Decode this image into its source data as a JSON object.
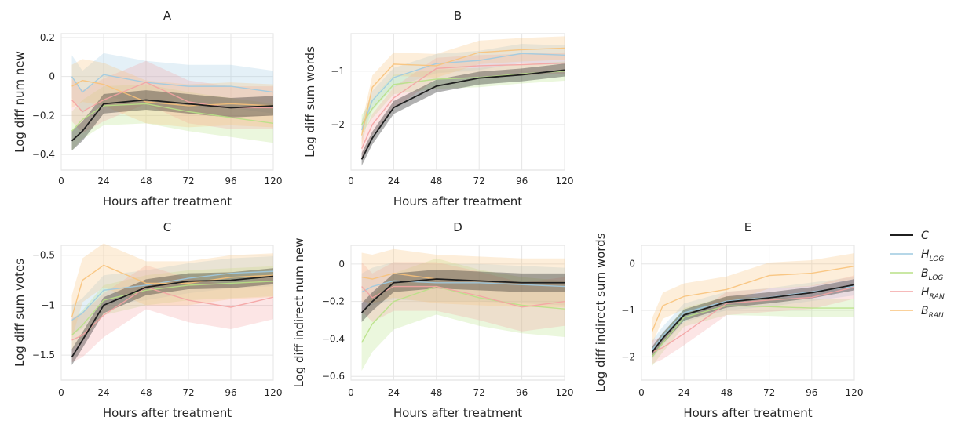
{
  "colors": {
    "C": "#1f1f1f",
    "H_LOG": "#9ecae1",
    "B_LOG": "#b8e186",
    "H_RAN": "#f4a3a3",
    "B_RAN": "#f8c27a"
  },
  "legend": {
    "placement": "right",
    "entries": [
      {
        "key": "C",
        "main": "C",
        "sub": ""
      },
      {
        "key": "H_LOG",
        "main": "H",
        "sub": "LOG"
      },
      {
        "key": "B_LOG",
        "main": "B",
        "sub": "LOG"
      },
      {
        "key": "H_RAN",
        "main": "H",
        "sub": "RAN"
      },
      {
        "key": "B_RAN",
        "main": "B",
        "sub": "RAN"
      }
    ]
  },
  "chart_data": [
    {
      "type": "line",
      "title": "A",
      "xlabel": "Hours after treatment",
      "ylabel": "Log diff num new",
      "xlim": [
        0,
        120
      ],
      "ylim": [
        -0.48,
        0.22
      ],
      "xticks": [
        0,
        24,
        48,
        72,
        96,
        120
      ],
      "yticks": [
        -0.4,
        -0.2,
        0.0,
        0.2
      ],
      "grid": true,
      "x": [
        6,
        12,
        24,
        48,
        72,
        96,
        120
      ],
      "series": [
        {
          "key": "C",
          "values": [
            -0.33,
            -0.28,
            -0.14,
            -0.12,
            -0.14,
            -0.16,
            -0.15
          ],
          "band": 0.05
        },
        {
          "key": "H_LOG",
          "values": [
            0.0,
            -0.08,
            0.01,
            -0.03,
            -0.05,
            -0.05,
            -0.08
          ],
          "band": 0.11
        },
        {
          "key": "B_LOG",
          "values": [
            -0.28,
            -0.22,
            -0.15,
            -0.14,
            -0.18,
            -0.21,
            -0.24
          ],
          "band": 0.1
        },
        {
          "key": "H_RAN",
          "values": [
            -0.12,
            -0.18,
            -0.12,
            -0.03,
            -0.13,
            -0.16,
            -0.16
          ],
          "band": 0.11
        },
        {
          "key": "B_RAN",
          "values": [
            -0.05,
            -0.02,
            -0.04,
            -0.13,
            -0.15,
            -0.14,
            -0.15
          ],
          "band": 0.11
        }
      ]
    },
    {
      "type": "line",
      "title": "B",
      "xlabel": "Hours after treatment",
      "ylabel": "Log diff sum words",
      "xlim": [
        0,
        120
      ],
      "ylim": [
        -2.85,
        -0.3
      ],
      "xticks": [
        0,
        24,
        48,
        72,
        96,
        120
      ],
      "yticks": [
        -2,
        -1
      ],
      "grid": true,
      "x": [
        6,
        12,
        24,
        48,
        72,
        96,
        120
      ],
      "series": [
        {
          "key": "C",
          "values": [
            -2.65,
            -2.25,
            -1.68,
            -1.28,
            -1.13,
            -1.07,
            -0.98
          ],
          "band": 0.12
        },
        {
          "key": "H_LOG",
          "values": [
            -2.1,
            -1.55,
            -1.12,
            -0.86,
            -0.8,
            -0.67,
            -0.7
          ],
          "band": 0.18
        },
        {
          "key": "B_LOG",
          "values": [
            -2.0,
            -1.7,
            -1.25,
            -1.15,
            -1.12,
            -1.05,
            -1.0
          ],
          "band": 0.18
        },
        {
          "key": "H_RAN",
          "values": [
            -2.45,
            -2.0,
            -1.5,
            -0.95,
            -0.9,
            -0.88,
            -0.85
          ],
          "band": 0.2
        },
        {
          "key": "B_RAN",
          "values": [
            -2.2,
            -1.3,
            -0.87,
            -0.9,
            -0.65,
            -0.6,
            -0.57
          ],
          "band": 0.22
        }
      ]
    },
    {
      "type": "line",
      "title": "C",
      "xlabel": "Hours after treatment",
      "ylabel": "Log diff sum votes",
      "xlim": [
        0,
        120
      ],
      "ylim": [
        -1.75,
        -0.4
      ],
      "xticks": [
        0,
        24,
        48,
        72,
        96,
        120
      ],
      "yticks": [
        -1.5,
        -1.0,
        -0.5
      ],
      "grid": true,
      "x": [
        6,
        12,
        24,
        48,
        72,
        96,
        120
      ],
      "series": [
        {
          "key": "C",
          "values": [
            -1.52,
            -1.35,
            -1.0,
            -0.82,
            -0.76,
            -0.75,
            -0.71
          ],
          "band": 0.08
        },
        {
          "key": "H_LOG",
          "values": [
            -1.15,
            -1.08,
            -0.85,
            -0.8,
            -0.73,
            -0.68,
            -0.66
          ],
          "band": 0.15
        },
        {
          "key": "B_LOG",
          "values": [
            -1.3,
            -1.2,
            -0.95,
            -0.85,
            -0.8,
            -0.78,
            -0.76
          ],
          "band": 0.15
        },
        {
          "key": "H_RAN",
          "values": [
            -1.35,
            -1.3,
            -1.1,
            -0.82,
            -0.95,
            -1.02,
            -0.92
          ],
          "band": 0.22
        },
        {
          "key": "B_RAN",
          "values": [
            -1.12,
            -0.75,
            -0.6,
            -0.78,
            -0.78,
            -0.72,
            -0.7
          ],
          "band": 0.22
        }
      ]
    },
    {
      "type": "line",
      "title": "D",
      "xlabel": "Hours after treatment",
      "ylabel": "Log diff indirect num new",
      "xlim": [
        0,
        120
      ],
      "ylim": [
        -0.62,
        0.1
      ],
      "xticks": [
        0,
        24,
        48,
        72,
        96,
        120
      ],
      "yticks": [
        -0.6,
        -0.4,
        -0.2,
        0.0
      ],
      "grid": true,
      "x": [
        6,
        12,
        24,
        48,
        72,
        96,
        120
      ],
      "series": [
        {
          "key": "C",
          "values": [
            -0.26,
            -0.2,
            -0.1,
            -0.08,
            -0.09,
            -0.1,
            -0.1
          ],
          "band": 0.05
        },
        {
          "key": "H_LOG",
          "values": [
            -0.15,
            -0.12,
            -0.09,
            -0.1,
            -0.1,
            -0.11,
            -0.12
          ],
          "band": 0.1
        },
        {
          "key": "B_LOG",
          "values": [
            -0.42,
            -0.32,
            -0.2,
            -0.12,
            -0.18,
            -0.22,
            -0.24
          ],
          "band": 0.15
        },
        {
          "key": "H_RAN",
          "values": [
            -0.12,
            -0.18,
            -0.12,
            -0.12,
            -0.17,
            -0.23,
            -0.2
          ],
          "band": 0.13
        },
        {
          "key": "B_RAN",
          "values": [
            -0.07,
            -0.08,
            -0.05,
            -0.08,
            -0.09,
            -0.1,
            -0.1
          ],
          "band": 0.13
        }
      ]
    },
    {
      "type": "line",
      "title": "E",
      "xlabel": "Hours after treatment",
      "ylabel": "Log diff indirect sum words",
      "xlim": [
        0,
        120
      ],
      "ylim": [
        -2.5,
        0.4
      ],
      "xticks": [
        0,
        24,
        48,
        72,
        96,
        120
      ],
      "yticks": [
        -2,
        -1,
        0
      ],
      "grid": true,
      "x": [
        6,
        12,
        24,
        48,
        72,
        96,
        120
      ],
      "series": [
        {
          "key": "C",
          "values": [
            -1.9,
            -1.6,
            -1.1,
            -0.82,
            -0.73,
            -0.62,
            -0.45
          ],
          "band": 0.12
        },
        {
          "key": "H_LOG",
          "values": [
            -1.85,
            -1.55,
            -1.05,
            -0.8,
            -0.72,
            -0.6,
            -0.48
          ],
          "band": 0.2
        },
        {
          "key": "B_LOG",
          "values": [
            -2.0,
            -1.7,
            -1.15,
            -0.9,
            -0.92,
            -0.95,
            -0.95
          ],
          "band": 0.2
        },
        {
          "key": "H_RAN",
          "values": [
            -1.9,
            -1.8,
            -1.5,
            -0.85,
            -0.78,
            -0.72,
            -0.5
          ],
          "band": 0.25
        },
        {
          "key": "B_RAN",
          "values": [
            -1.45,
            -0.9,
            -0.7,
            -0.55,
            -0.25,
            -0.2,
            -0.05
          ],
          "band": 0.28
        }
      ]
    }
  ]
}
